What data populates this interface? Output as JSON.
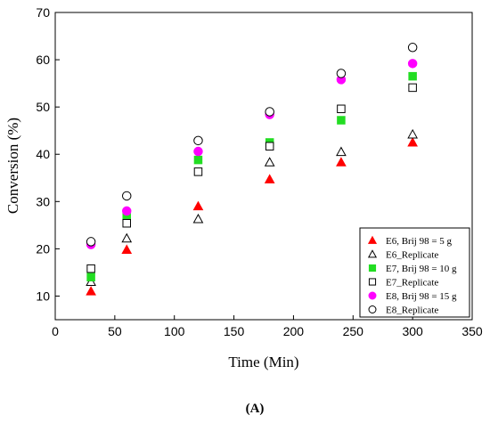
{
  "chart_data": {
    "type": "scatter",
    "title": "",
    "xlabel": "Time (Min)",
    "ylabel": "Conversion (%)",
    "xlim": [
      0,
      350
    ],
    "ylim": [
      5,
      70
    ],
    "xticks": [
      0,
      50,
      100,
      150,
      200,
      250,
      300,
      350
    ],
    "yticks": [
      10,
      20,
      30,
      40,
      50,
      60,
      70
    ],
    "grid": false,
    "legend_position": "bottom-right",
    "caption": "(A)",
    "series": [
      {
        "name": "E6, Brij 98 = 5 g",
        "marker": "triangle-filled",
        "color": "#ff0000",
        "x": [
          30,
          60,
          120,
          180,
          240,
          300
        ],
        "y": [
          11.0,
          19.8,
          29.0,
          34.7,
          38.3,
          42.5
        ]
      },
      {
        "name": "E6_Replicate",
        "marker": "triangle-open",
        "color": "#000000",
        "x": [
          30,
          60,
          120,
          180,
          240,
          300
        ],
        "y": [
          13.0,
          22.2,
          26.3,
          38.3,
          40.5,
          44.2
        ]
      },
      {
        "name": "E7, Brij 98 = 10 g",
        "marker": "square-filled",
        "color": "#22dd22",
        "x": [
          30,
          60,
          120,
          180,
          240,
          300
        ],
        "y": [
          14.0,
          26.8,
          38.8,
          42.5,
          47.2,
          56.5
        ]
      },
      {
        "name": "E7_Replicate",
        "marker": "square-open",
        "color": "#000000",
        "x": [
          30,
          60,
          120,
          180,
          240,
          300
        ],
        "y": [
          15.8,
          25.4,
          36.3,
          41.7,
          49.6,
          54.1
        ]
      },
      {
        "name": "E8, Brij 98 = 15 g",
        "marker": "circle-filled",
        "color": "#ff00ff",
        "x": [
          30,
          60,
          120,
          180,
          240,
          300
        ],
        "y": [
          20.9,
          28.0,
          40.6,
          48.4,
          55.8,
          59.2
        ]
      },
      {
        "name": "E8_Replicate",
        "marker": "circle-open",
        "color": "#000000",
        "x": [
          30,
          60,
          120,
          180,
          240,
          300
        ],
        "y": [
          21.5,
          31.2,
          42.9,
          49.0,
          57.1,
          62.6
        ]
      }
    ]
  }
}
